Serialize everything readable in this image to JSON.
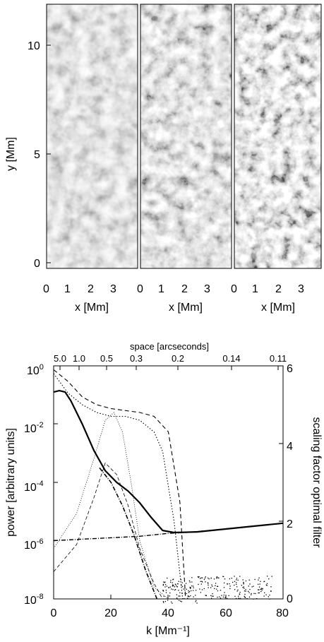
{
  "figure_top": {
    "ylabel": "y [Mm]",
    "xlabel": "x [Mm]",
    "yticks": [
      "0",
      "5",
      "10"
    ],
    "xticks": [
      "0",
      "1",
      "2",
      "3"
    ],
    "panels": [
      "panel-1",
      "panel-2",
      "panel-3"
    ]
  },
  "chart_data": {
    "type": "line",
    "xlabel": "k [Mm⁻¹]",
    "ylabel": "power [arbitrary units]",
    "y2label": "scaling factor optimal filter",
    "top_axis_label": "space [arcseconds]",
    "xlim": [
      0,
      80
    ],
    "ylim_log10": [
      -8,
      0
    ],
    "y2lim": [
      0,
      6
    ],
    "x_ticks": [
      "0",
      "20",
      "40",
      "60",
      "80"
    ],
    "y_ticks": [
      "10^0",
      "10^-2",
      "10^-4",
      "10^-6",
      "10^-8"
    ],
    "y2_ticks": [
      "0",
      "2",
      "4",
      "6"
    ],
    "top_ticks": [
      "5.0",
      "1.0",
      "0.5",
      "0.3",
      "0.2",
      "0.14",
      "0.11"
    ],
    "series": [
      {
        "style": "solid-thick",
        "x": [
          0,
          2,
          4,
          6,
          10,
          14,
          18,
          22,
          26,
          30,
          34,
          38,
          42,
          50,
          60,
          70,
          80
        ],
        "log10y": [
          -0.9,
          -0.85,
          -0.9,
          -1.2,
          -2.0,
          -2.9,
          -3.6,
          -4.0,
          -4.3,
          -4.7,
          -5.2,
          -5.65,
          -5.72,
          -5.7,
          -5.6,
          -5.5,
          -5.4
        ]
      },
      {
        "style": "dash-dot-noise",
        "x": [
          0,
          10,
          20,
          30,
          40,
          46,
          60,
          80
        ],
        "log10y": [
          -6.0,
          -5.95,
          -5.9,
          -5.85,
          -5.75,
          -5.72,
          -5.6,
          -5.4
        ]
      },
      {
        "style": "dash-dot-signal",
        "x": [
          16,
          20,
          24,
          28,
          32,
          36
        ],
        "log10y": [
          -3.5,
          -4.0,
          -4.8,
          -5.8,
          -7.0,
          -8.0
        ]
      },
      {
        "style": "dashed-filter",
        "x": [
          0,
          5,
          10,
          15,
          20,
          25,
          30,
          35,
          40,
          44,
          46
        ],
        "y2": [
          5.9,
          5.6,
          5.2,
          5.0,
          4.9,
          4.85,
          4.8,
          4.7,
          4.3,
          2.5,
          0
        ]
      },
      {
        "style": "dotted-filter",
        "x": [
          0,
          5,
          10,
          15,
          20,
          25,
          30,
          35,
          38,
          42,
          45
        ],
        "y2": [
          5.8,
          5.3,
          5.0,
          4.8,
          4.7,
          4.7,
          4.6,
          4.3,
          3.8,
          2.0,
          0
        ]
      },
      {
        "style": "thin-dotted-bell",
        "x": [
          0,
          8,
          14,
          18,
          21,
          24,
          27,
          30,
          35,
          40
        ],
        "y2": [
          1.3,
          2.2,
          3.6,
          4.6,
          4.8,
          4.3,
          3.0,
          1.5,
          0.3,
          0
        ]
      },
      {
        "style": "thin-dashed-bell",
        "x": [
          0,
          8,
          14,
          18,
          22,
          26,
          30,
          35,
          38
        ],
        "y2": [
          0.7,
          1.4,
          2.6,
          3.5,
          3.2,
          2.4,
          1.3,
          0.4,
          0
        ]
      }
    ]
  }
}
